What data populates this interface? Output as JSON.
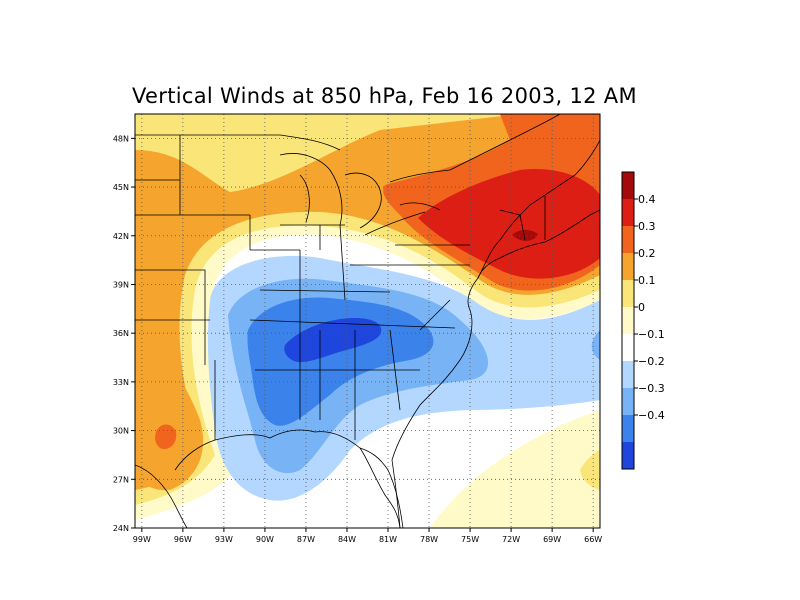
{
  "title": "Vertical Winds at 850 hPa, Feb 16 2003, 12 AM",
  "map": {
    "projection": "lat-lon",
    "lon_range": [
      -99.5,
      -65.5
    ],
    "lat_range": [
      24,
      49.5
    ],
    "gridlines": "dotted",
    "x_ticks": [
      "99W",
      "96W",
      "93W",
      "90W",
      "87W",
      "84W",
      "81W",
      "78W",
      "75W",
      "72W",
      "69W",
      "66W"
    ],
    "y_ticks": [
      "24N",
      "27N",
      "30N",
      "33N",
      "36N",
      "39N",
      "42N",
      "45N",
      "48N"
    ]
  },
  "colorbar": {
    "orientation": "vertical",
    "position": "right",
    "labels": [
      "0.4",
      "0.3",
      "0.2",
      "0.1",
      "0",
      "−0.1",
      "−0.2",
      "−0.3",
      "−0.4"
    ],
    "colors": [
      "#a50a0a",
      "#dc1e14",
      "#f0641e",
      "#f5a52d",
      "#fae678",
      "#fffac8",
      "#ffffff",
      "#b4d7ff",
      "#78b4f5",
      "#3c82eb",
      "#1e46dc"
    ]
  },
  "field_regions": [
    {
      "name": "northeast-maximum",
      "level": "0.3 to 0.4",
      "center": "Connecticut / Massachusetts coast"
    },
    {
      "name": "northeast-upward",
      "level": "0.2 to 0.3",
      "center": "New England"
    },
    {
      "name": "tennessee-minimum",
      "level": "-0.3 to -0.4",
      "center": "Tennessee / Kentucky"
    },
    {
      "name": "southeast-downward",
      "level": "-0.1 to -0.3",
      "center": "Southeast US"
    },
    {
      "name": "texas-maximum",
      "level": "0.2 to 0.3",
      "center": "Southeast Texas"
    }
  ]
}
